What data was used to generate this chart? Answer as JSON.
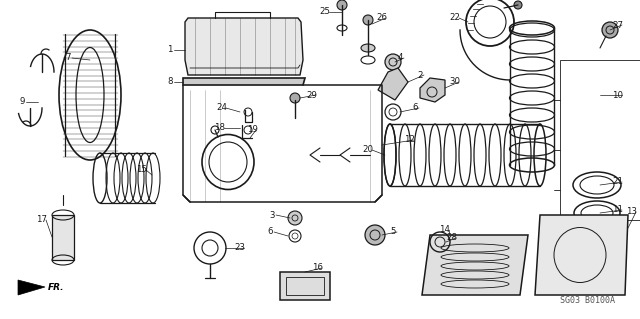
{
  "bg_color": "#f5f5f0",
  "line_color": "#1a1a1a",
  "watermark": "SG03 B0100A",
  "fig_width": 6.4,
  "fig_height": 3.19,
  "dpi": 100
}
